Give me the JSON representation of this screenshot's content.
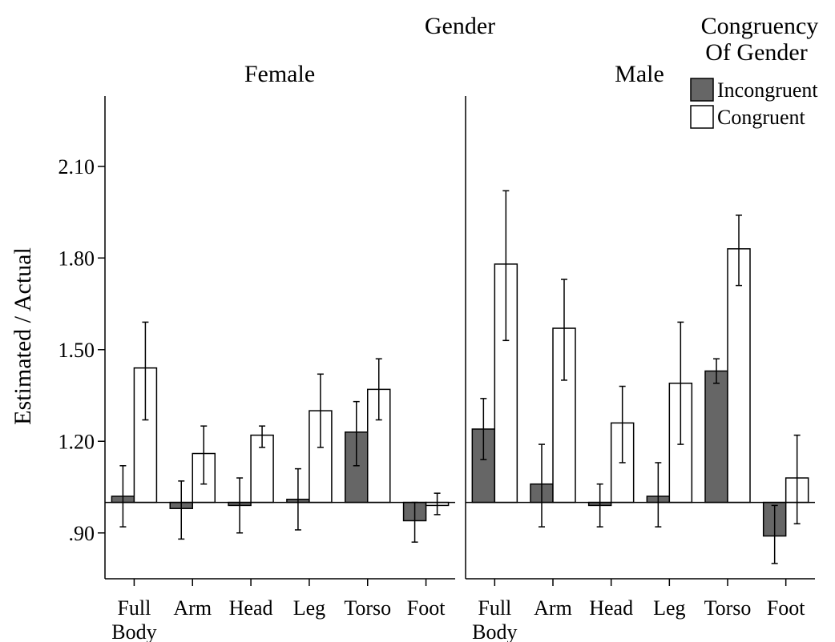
{
  "chart_data": {
    "type": "bar",
    "title": "Gender",
    "ylabel": "Estimated / Actual",
    "ylim": [
      0.75,
      2.33
    ],
    "baseline": 1.0,
    "yticks": [
      {
        "value": 0.9,
        "label": ".90"
      },
      {
        "value": 1.2,
        "label": "1.20"
      },
      {
        "value": 1.5,
        "label": "1.50"
      },
      {
        "value": 1.8,
        "label": "1.80"
      },
      {
        "value": 2.1,
        "label": "2.10"
      }
    ],
    "categories": [
      "Full Body",
      "Arm",
      "Head",
      "Leg",
      "Torso",
      "Foot"
    ],
    "category_lines": [
      [
        "Full",
        "Body"
      ],
      [
        "Arm"
      ],
      [
        "Head"
      ],
      [
        "Leg"
      ],
      [
        "Torso"
      ],
      [
        "Foot"
      ]
    ],
    "legend": {
      "title_lines": [
        "Congruency",
        "Of Gender"
      ],
      "position": "top-right",
      "entries": [
        {
          "name": "Incongruent",
          "color": "#666666"
        },
        {
          "name": "Congruent",
          "color": "#ffffff"
        }
      ]
    },
    "panels": [
      {
        "name": "Female",
        "series": [
          {
            "name": "Incongruent",
            "color": "#666666",
            "values": [
              1.02,
              0.98,
              0.99,
              1.01,
              1.23,
              0.94
            ],
            "err_low": [
              0.92,
              0.88,
              0.9,
              0.91,
              1.12,
              0.87
            ],
            "err_high": [
              1.12,
              1.07,
              1.08,
              1.11,
              1.33,
              1.0
            ]
          },
          {
            "name": "Congruent",
            "color": "#ffffff",
            "values": [
              1.44,
              1.16,
              1.22,
              1.3,
              1.37,
              0.99
            ],
            "err_low": [
              1.27,
              1.06,
              1.18,
              1.18,
              1.27,
              0.96
            ],
            "err_high": [
              1.59,
              1.25,
              1.25,
              1.42,
              1.47,
              1.03
            ]
          }
        ]
      },
      {
        "name": "Male",
        "series": [
          {
            "name": "Incongruent",
            "color": "#666666",
            "values": [
              1.24,
              1.06,
              0.99,
              1.02,
              1.43,
              0.89
            ],
            "err_low": [
              1.14,
              0.92,
              0.92,
              0.92,
              1.39,
              0.8
            ],
            "err_high": [
              1.34,
              1.19,
              1.06,
              1.13,
              1.47,
              0.99
            ]
          },
          {
            "name": "Congruent",
            "color": "#ffffff",
            "values": [
              1.78,
              1.57,
              1.26,
              1.39,
              1.83,
              1.08
            ],
            "err_low": [
              1.53,
              1.4,
              1.13,
              1.19,
              1.71,
              0.93
            ],
            "err_high": [
              2.02,
              1.73,
              1.38,
              1.59,
              1.94,
              1.22
            ]
          }
        ]
      }
    ]
  }
}
